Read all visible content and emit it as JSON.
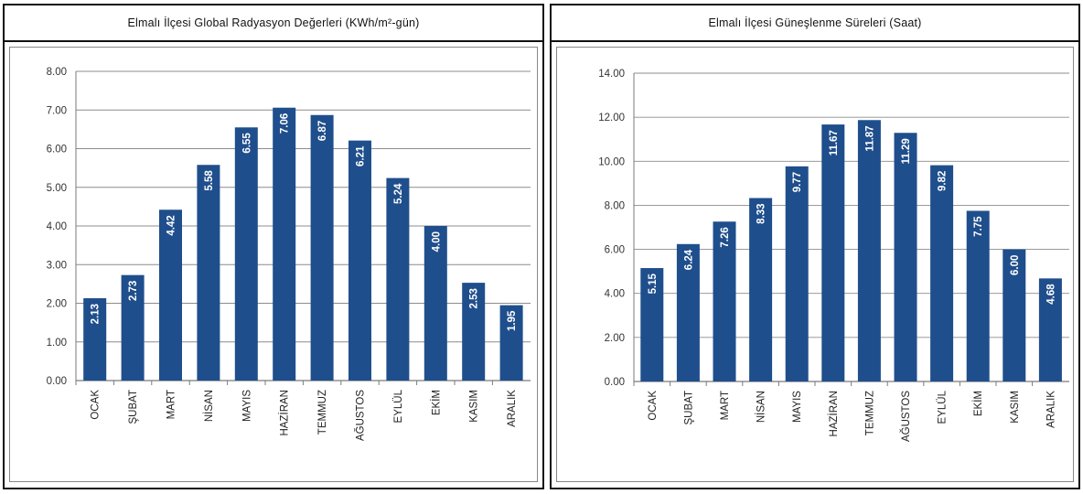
{
  "chart_data": [
    {
      "type": "bar",
      "title": "Elmalı İlçesi Global Radyasyon Değerleri (KWh/m²-gün)",
      "categories": [
        "OCAK",
        "ŞUBAT",
        "MART",
        "NİSAN",
        "MAYIS",
        "HAZİRAN",
        "TEMMUZ",
        "AĞUSTOS",
        "EYLÜL",
        "EKİM",
        "KASIM",
        "ARALIK"
      ],
      "values": [
        2.13,
        2.73,
        4.42,
        5.58,
        6.55,
        7.06,
        6.87,
        6.21,
        5.24,
        4.0,
        2.53,
        1.95
      ],
      "value_labels": [
        "2.13",
        "2.73",
        "4.42",
        "5.58",
        "6.55",
        "7.06",
        "6.87",
        "6.21",
        "5.24",
        "4.00",
        "2.53",
        "1.95"
      ],
      "yticks": [
        "0.00",
        "1.00",
        "2.00",
        "3.00",
        "4.00",
        "5.00",
        "6.00",
        "7.00",
        "8.00"
      ],
      "ylim": [
        0,
        8
      ],
      "grid": true,
      "bar_color": "#1f4e8c"
    },
    {
      "type": "bar",
      "title": "Elmalı İlçesi Güneşlenme Süreleri (Saat)",
      "categories": [
        "OCAK",
        "ŞUBAT",
        "MART",
        "NİSAN",
        "MAYIS",
        "HAZİRAN",
        "TEMMUZ",
        "AĞUSTOS",
        "EYLÜL",
        "EKİM",
        "KASIM",
        "ARALIK"
      ],
      "values": [
        5.15,
        6.24,
        7.26,
        8.33,
        9.77,
        11.67,
        11.87,
        11.29,
        9.82,
        7.75,
        6.0,
        4.68
      ],
      "value_labels": [
        "5.15",
        "6.24",
        "7.26",
        "8.33",
        "9.77",
        "11.67",
        "11.87",
        "11.29",
        "9.82",
        "7.75",
        "6.00",
        "4.68"
      ],
      "yticks": [
        "0.00",
        "2.00",
        "4.00",
        "6.00",
        "8.00",
        "10.00",
        "12.00",
        "14.00"
      ],
      "ylim": [
        0,
        14
      ],
      "grid": true,
      "bar_color": "#1f4e8c"
    }
  ]
}
